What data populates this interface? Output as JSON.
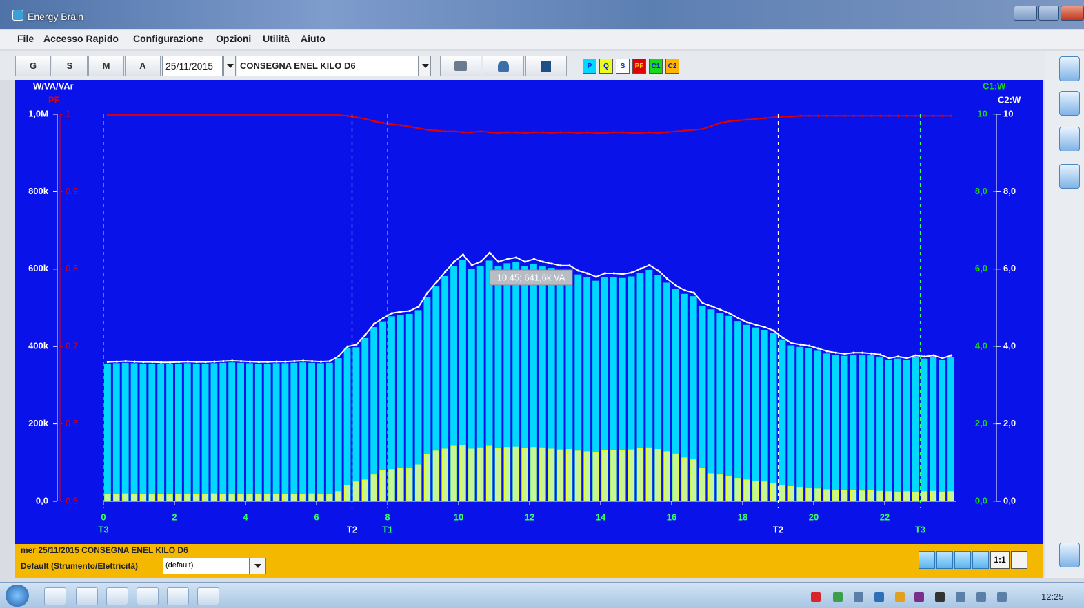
{
  "window": {
    "title": "Energy Brain"
  },
  "menu": [
    "File",
    "Accesso Rapido",
    "Configurazione",
    "Opzioni",
    "Utilità",
    "Aiuto"
  ],
  "toolbar": {
    "periods": [
      "G",
      "S",
      "M",
      "A"
    ],
    "date": "25/11/2015",
    "point": "CONSEGNA ENEL KILO D6",
    "extra_legend": [
      {
        "name": "C1",
        "color": "#18d818"
      },
      {
        "name": "C2",
        "color": "#ffb400"
      }
    ]
  },
  "chart_data": {
    "type": "bar",
    "y_label": "W/VA/VAr",
    "y2_label": "PF",
    "c1_label": "C1:W",
    "c2_label": "C2:W",
    "xlim": [
      0,
      24
    ],
    "xticks": [
      0,
      2,
      4,
      6,
      8,
      10,
      12,
      14,
      16,
      18,
      20,
      22
    ],
    "ylim": [
      0,
      1000000
    ],
    "yticks": [
      {
        "value": 0,
        "label": "0,0"
      },
      {
        "value": 200000,
        "label": "200k"
      },
      {
        "value": 400000,
        "label": "400k"
      },
      {
        "value": 600000,
        "label": "600k"
      },
      {
        "value": 800000,
        "label": "800k"
      },
      {
        "value": 1000000,
        "label": "1,0M"
      }
    ],
    "y2lim": [
      0.5,
      1
    ],
    "y2ticks": [
      {
        "value": 0.5,
        "label": "0,5"
      },
      {
        "value": 0.6,
        "label": "0,6"
      },
      {
        "value": 0.7,
        "label": "0,7"
      },
      {
        "value": 0.8,
        "label": "0,8"
      },
      {
        "value": 0.9,
        "label": "0,9"
      },
      1
    ],
    "c1lim": [
      0,
      10
    ],
    "c1ticks": [
      {
        "value": 0,
        "label": "0,0"
      },
      {
        "value": 2,
        "label": "2,0"
      },
      {
        "value": 4,
        "label": "4,0"
      },
      {
        "value": 6,
        "label": "6,0"
      },
      {
        "value": 8,
        "label": "8,0"
      },
      10
    ],
    "c2lim": [
      0,
      10
    ],
    "c2ticks": [
      {
        "value": 0,
        "label": "0,0"
      },
      {
        "value": 2,
        "label": "2,0"
      },
      {
        "value": 4,
        "label": "4,0"
      },
      {
        "value": 6,
        "label": "6,0"
      },
      {
        "value": 8,
        "label": "8,0"
      },
      10
    ],
    "markers": [
      {
        "x": 0,
        "label": "T3",
        "color": "#33ff66"
      },
      {
        "x": 7,
        "label": "T2",
        "color": "#ffffff"
      },
      {
        "x": 8,
        "label": "T1",
        "color": "#33ff66"
      },
      {
        "x": 19,
        "label": "T2",
        "color": "#ffffff"
      },
      {
        "x": 23,
        "label": "T3",
        "color": "#33ff66"
      }
    ],
    "annotations": [
      {
        "text": "10.45; 641,6k VA"
      }
    ],
    "x": [
      0,
      0.25,
      0.5,
      0.75,
      1,
      1.25,
      1.5,
      1.75,
      2,
      2.25,
      2.5,
      2.75,
      3,
      3.25,
      3.5,
      3.75,
      4,
      4.25,
      4.5,
      4.75,
      5,
      5.25,
      5.5,
      5.75,
      6,
      6.25,
      6.5,
      6.75,
      7,
      7.25,
      7.5,
      7.75,
      8,
      8.25,
      8.5,
      8.75,
      9,
      9.25,
      9.5,
      9.75,
      10,
      10.25,
      10.5,
      10.75,
      11,
      11.25,
      11.5,
      11.75,
      12,
      12.25,
      12.5,
      12.75,
      13,
      13.25,
      13.5,
      13.75,
      14,
      14.25,
      14.5,
      14.75,
      15,
      15.25,
      15.5,
      15.75,
      16,
      16.25,
      16.5,
      16.75,
      17,
      17.25,
      17.5,
      17.75,
      18,
      18.25,
      18.5,
      18.75,
      19,
      19.25,
      19.5,
      19.75,
      20,
      20.25,
      20.5,
      20.75,
      21,
      21.25,
      21.5,
      21.75,
      22,
      22.25,
      22.5,
      22.75,
      23,
      23.25,
      23.5,
      23.75
    ],
    "series": [
      {
        "name": "P",
        "type": "bar",
        "color": "#00d8ff",
        "values": [
          356000,
          357000,
          358000,
          357000,
          356000,
          356000,
          355000,
          355000,
          356000,
          357000,
          356000,
          356000,
          357000,
          358000,
          359000,
          358000,
          357000,
          356000,
          356000,
          357000,
          357000,
          358000,
          359000,
          358000,
          357000,
          358000,
          370000,
          395000,
          398000,
          422000,
          450000,
          465000,
          478000,
          482000,
          484000,
          494000,
          528000,
          555000,
          582000,
          607000,
          624000,
          600000,
          608000,
          622000,
          608000,
          615000,
          618000,
          608000,
          614000,
          608000,
          603000,
          598000,
          598000,
          586000,
          579000,
          570000,
          579000,
          579000,
          577000,
          581000,
          590000,
          598000,
          585000,
          565000,
          548000,
          536000,
          530000,
          504000,
          496000,
          487000,
          479000,
          466000,
          456000,
          449000,
          443000,
          435000,
          417000,
          403000,
          399000,
          396000,
          389000,
          382000,
          379000,
          376000,
          379000,
          379000,
          377000,
          374000,
          365000,
          369000,
          365000,
          372000,
          369000,
          372000,
          365000,
          372000
        ]
      },
      {
        "name": "Q",
        "type": "bar",
        "color": "#e8ff1e",
        "values": [
          18000,
          18000,
          19000,
          18000,
          18000,
          18000,
          17000,
          17000,
          18000,
          18000,
          17000,
          18000,
          19000,
          18000,
          18000,
          18000,
          18000,
          18000,
          18000,
          18000,
          18000,
          18000,
          18000,
          19000,
          18000,
          18000,
          25000,
          41000,
          50000,
          55000,
          68000,
          80000,
          82000,
          85000,
          85000,
          94000,
          121000,
          130000,
          135000,
          142000,
          144000,
          135000,
          138000,
          142000,
          136000,
          139000,
          140000,
          137000,
          139000,
          138000,
          135000,
          133000,
          134000,
          130000,
          128000,
          126000,
          131000,
          132000,
          131000,
          133000,
          136000,
          138000,
          134000,
          128000,
          122000,
          112000,
          107000,
          85000,
          71000,
          68000,
          64000,
          59000,
          55000,
          52000,
          50000,
          47000,
          41000,
          38000,
          36000,
          34000,
          32000,
          30000,
          29000,
          28000,
          28000,
          27000,
          28000,
          26000,
          25000,
          24000,
          25000,
          24000,
          25000,
          26000,
          24000,
          25000
        ]
      },
      {
        "name": "S",
        "type": "line",
        "color": "#ffffff",
        "values": [
          360000,
          361000,
          362000,
          361000,
          360000,
          360000,
          359000,
          359000,
          360000,
          361000,
          360000,
          360000,
          361000,
          362000,
          363000,
          362000,
          361000,
          360000,
          360000,
          361000,
          361000,
          362000,
          363000,
          362000,
          361000,
          362000,
          375000,
          400000,
          405000,
          430000,
          459000,
          473000,
          486000,
          490000,
          492000,
          503000,
          539000,
          566000,
          593000,
          619000,
          637000,
          610000,
          619000,
          642000,
          619000,
          626000,
          630000,
          619000,
          626000,
          619000,
          614000,
          609000,
          609000,
          596000,
          589000,
          580000,
          589000,
          589000,
          587000,
          591000,
          601000,
          610000,
          596000,
          575000,
          557000,
          545000,
          539000,
          512000,
          504000,
          495000,
          486000,
          473000,
          463000,
          456000,
          450000,
          441000,
          423000,
          409000,
          405000,
          402000,
          395000,
          388000,
          384000,
          381000,
          384000,
          384000,
          382000,
          379000,
          370000,
          374000,
          370000,
          377000,
          374000,
          377000,
          370000,
          377000
        ]
      },
      {
        "name": "PF",
        "type": "line",
        "axis": "y2",
        "color": "#e00000",
        "values": [
          0.999,
          0.999,
          0.999,
          0.999,
          0.999,
          0.999,
          0.999,
          0.999,
          0.999,
          0.999,
          0.999,
          0.999,
          0.999,
          0.999,
          0.999,
          0.999,
          0.999,
          0.999,
          0.999,
          0.999,
          0.999,
          0.999,
          0.999,
          0.999,
          0.999,
          0.999,
          0.999,
          0.998,
          0.996,
          0.994,
          0.991,
          0.989,
          0.987,
          0.986,
          0.984,
          0.982,
          0.98,
          0.979,
          0.978,
          0.978,
          0.977,
          0.977,
          0.978,
          0.977,
          0.976,
          0.977,
          0.977,
          0.976,
          0.977,
          0.977,
          0.976,
          0.977,
          0.977,
          0.976,
          0.977,
          0.976,
          0.976,
          0.977,
          0.977,
          0.976,
          0.976,
          0.977,
          0.976,
          0.977,
          0.978,
          0.979,
          0.98,
          0.981,
          0.985,
          0.989,
          0.991,
          0.992,
          0.993,
          0.994,
          0.995,
          0.996,
          0.997,
          0.997,
          0.998,
          0.998,
          0.998,
          0.998,
          0.998,
          0.998,
          0.998,
          0.998,
          0.998,
          0.998,
          0.998,
          0.998,
          0.998,
          0.998,
          0.998,
          0.998,
          0.998,
          0.998
        ]
      }
    ]
  },
  "footer": {
    "status": "mer 25/11/2015 CONSEGNA ENEL KILO D6",
    "profile_label": "Default (Strumento/Elettricità)",
    "profile": "(default)",
    "zoom": "1:1"
  },
  "taskbar": {
    "time": "12:25"
  }
}
